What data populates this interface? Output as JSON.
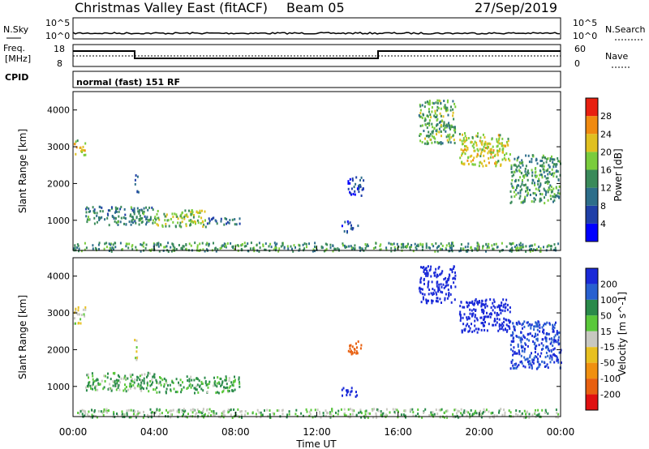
{
  "header": {
    "title": "Christmas Valley East (fitACF)",
    "beam": "Beam 05",
    "date": "27/Sep/2019"
  },
  "top_panels": {
    "nsky_label": "N.Sky",
    "nsky_ticks": [
      "10^5",
      "10^0"
    ],
    "nsearch_label": "N.Search",
    "nsearch_ticks": [
      "10^5",
      "10^0"
    ],
    "freq_label_1": "Freq.",
    "freq_label_2": "[MHz]",
    "freq_ticks": [
      "18",
      "8"
    ],
    "nave_label": "Nave",
    "nave_ticks": [
      "60",
      "0"
    ],
    "cpid_label": "CPID",
    "cpid_value": "normal (fast) 151 RF"
  },
  "colors": {
    "power": [
      "#0000ff",
      "#1f3fa8",
      "#2d6e8a",
      "#3a8a5a",
      "#7acc3c",
      "#e0c020",
      "#f08a10",
      "#e82010"
    ],
    "velocity": [
      "#1a2ad8",
      "#2860d0",
      "#2a8a4a",
      "#5ac83a",
      "#c8c8c0",
      "#e8c020",
      "#f09010",
      "#e86010",
      "#e01010"
    ]
  },
  "chart_data": [
    {
      "type": "heatmap",
      "name": "power",
      "xlabel": "Time UT",
      "ylabel": "Slant Range [km]",
      "xlim": [
        0,
        24
      ],
      "ylim": [
        180,
        4500
      ],
      "x_ticks": [
        "00:00",
        "04:00",
        "08:00",
        "12:00",
        "16:00",
        "20:00",
        "00:00"
      ],
      "y_ticks": [
        "1000",
        "2000",
        "3000",
        "4000"
      ],
      "colorbar_label": "Power [dB]",
      "colorbar_ticks": [
        "4",
        "8",
        "12",
        "16",
        "20",
        "24",
        "28"
      ],
      "colorbar_range": [
        0,
        30
      ],
      "regions": [
        {
          "t": [
            0.0,
            0.6
          ],
          "r": [
            2800,
            3200
          ],
          "level": 20
        },
        {
          "t": [
            0.6,
            4.0
          ],
          "r": [
            900,
            1400
          ],
          "level": 12
        },
        {
          "t": [
            4.0,
            6.5
          ],
          "r": [
            850,
            1300
          ],
          "level": 18
        },
        {
          "t": [
            6.5,
            8.2
          ],
          "r": [
            900,
            1100
          ],
          "level": 10
        },
        {
          "t": [
            3.0,
            3.2
          ],
          "r": [
            1700,
            2300
          ],
          "level": 8
        },
        {
          "t": [
            0.0,
            24.0
          ],
          "r": [
            180,
            420
          ],
          "level": 14
        },
        {
          "t": [
            13.5,
            14.3
          ],
          "r": [
            1700,
            2200
          ],
          "level": 6
        },
        {
          "t": [
            13.2,
            14.0
          ],
          "r": [
            700,
            1000
          ],
          "level": 8
        },
        {
          "t": [
            17.0,
            18.8
          ],
          "r": [
            3100,
            4300
          ],
          "level": 16
        },
        {
          "t": [
            19.0,
            21.5
          ],
          "r": [
            2500,
            3400
          ],
          "level": 20
        },
        {
          "t": [
            21.5,
            24.0
          ],
          "r": [
            1500,
            2800
          ],
          "level": 14
        }
      ]
    },
    {
      "type": "heatmap",
      "name": "velocity",
      "xlabel": "Time UT",
      "ylabel": "Slant Range [km]",
      "xlim": [
        0,
        24
      ],
      "ylim": [
        180,
        4500
      ],
      "x_ticks": [
        "00:00",
        "04:00",
        "08:00",
        "12:00",
        "16:00",
        "20:00",
        "00:00"
      ],
      "y_ticks": [
        "1000",
        "2000",
        "3000",
        "4000"
      ],
      "colorbar_label": "Velocity [m s^-1]",
      "colorbar_ticks": [
        "200",
        "100",
        "50",
        "15",
        "-15",
        "-50",
        "-100",
        "-200"
      ],
      "colorbar_range": [
        -250,
        250
      ],
      "regions": [
        {
          "t": [
            0.0,
            0.6
          ],
          "r": [
            2700,
            3200
          ],
          "level": 0
        },
        {
          "t": [
            0.6,
            4.0
          ],
          "r": [
            900,
            1400
          ],
          "level": 30
        },
        {
          "t": [
            4.0,
            8.2
          ],
          "r": [
            850,
            1300
          ],
          "level": 40
        },
        {
          "t": [
            3.0,
            3.2
          ],
          "r": [
            1700,
            2300
          ],
          "level": 0
        },
        {
          "t": [
            0.0,
            24.0
          ],
          "r": [
            180,
            420
          ],
          "level": 20
        },
        {
          "t": [
            13.5,
            14.2
          ],
          "r": [
            1900,
            2300
          ],
          "level": -120
        },
        {
          "t": [
            13.2,
            14.0
          ],
          "r": [
            700,
            1000
          ],
          "level": 180
        },
        {
          "t": [
            17.0,
            18.8
          ],
          "r": [
            3300,
            4300
          ],
          "level": 200
        },
        {
          "t": [
            19.0,
            21.5
          ],
          "r": [
            2500,
            3400
          ],
          "level": 210
        },
        {
          "t": [
            21.5,
            24.0
          ],
          "r": [
            1500,
            2800
          ],
          "level": 150
        }
      ]
    }
  ]
}
